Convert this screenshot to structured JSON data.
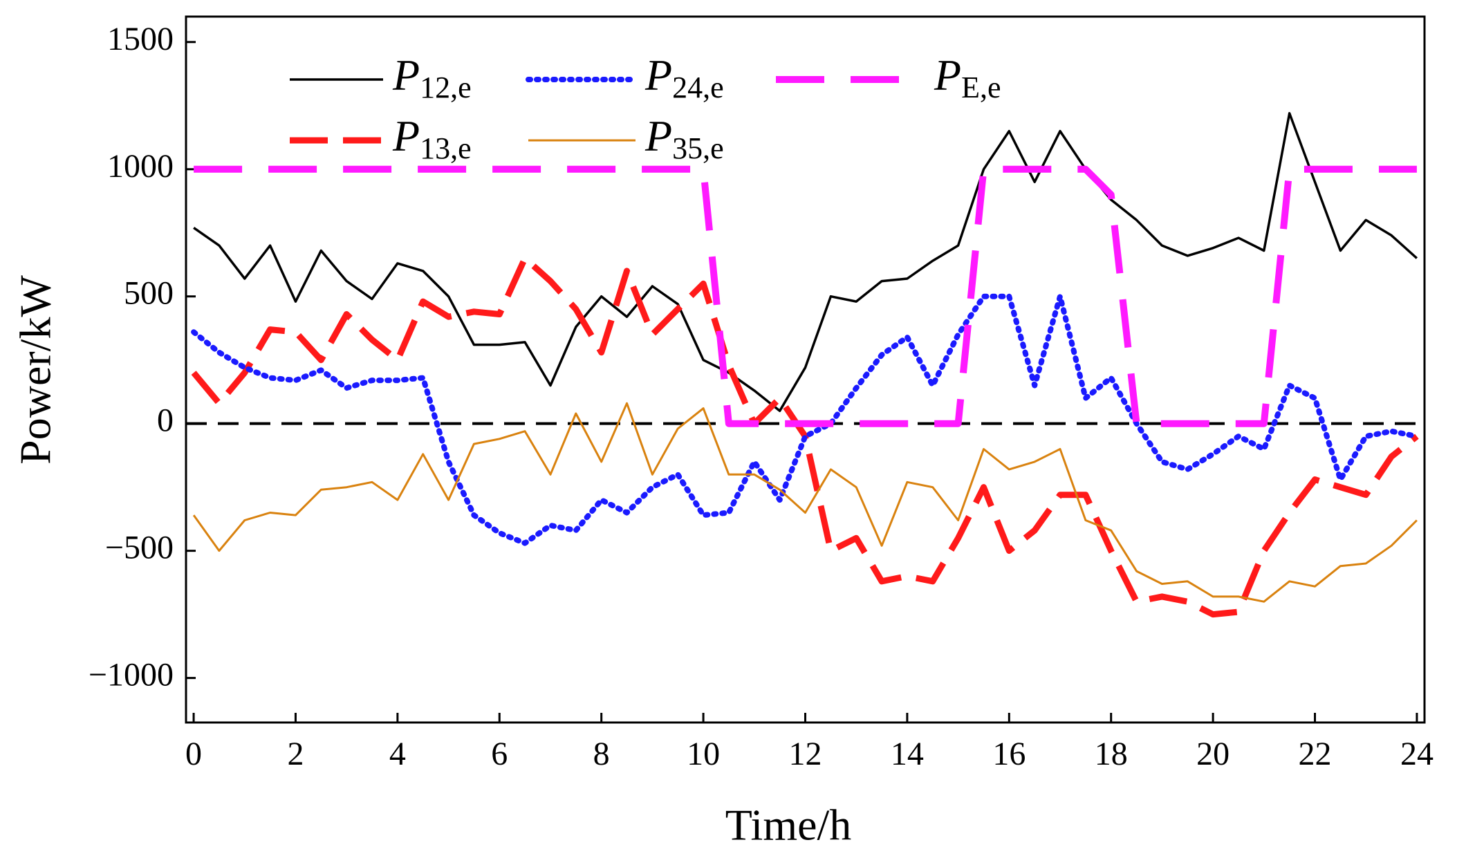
{
  "chart_data": {
    "type": "line",
    "xlabel": "Time/h",
    "ylabel": "Power/kW",
    "x": [
      0,
      0.5,
      1,
      1.5,
      2,
      2.5,
      3,
      3.5,
      4,
      4.5,
      5,
      5.5,
      6,
      6.5,
      7,
      7.5,
      8,
      8.5,
      9,
      9.5,
      10,
      10.5,
      11,
      11.5,
      12,
      12.5,
      13,
      13.5,
      14,
      14.5,
      15,
      15.5,
      16,
      16.5,
      17,
      17.5,
      18,
      18.5,
      19,
      19.5,
      20,
      20.5,
      21,
      21.5,
      22,
      22.5,
      23,
      23.5,
      24
    ],
    "xlim": [
      -0.15,
      24.15
    ],
    "xticks": [
      0,
      2,
      4,
      6,
      8,
      10,
      12,
      14,
      16,
      18,
      20,
      22,
      24
    ],
    "ylim": [
      -1175,
      1600
    ],
    "yticks": [
      {
        "value": -1000,
        "label": "−1000"
      },
      {
        "value": -500,
        "label": "−500"
      },
      0,
      500,
      1000,
      1500
    ],
    "legend": "upper left",
    "series": [
      {
        "name": "P12,e",
        "color": "#000000",
        "linestyle": "solid",
        "values": [
          770,
          700,
          570,
          700,
          480,
          680,
          560,
          490,
          630,
          600,
          500,
          310,
          310,
          320,
          150,
          380,
          500,
          420,
          540,
          470,
          250,
          200,
          130,
          50,
          220,
          500,
          480,
          560,
          570,
          640,
          700,
          1000,
          1150,
          950,
          1150,
          1000,
          880,
          800,
          700,
          660,
          690,
          730,
          680,
          1220,
          950,
          680,
          800,
          740,
          650
        ]
      },
      {
        "name": "P13,e",
        "color": "#ff1a1a",
        "linestyle": "dashed",
        "values": [
          200,
          80,
          200,
          370,
          360,
          250,
          430,
          330,
          250,
          480,
          420,
          440,
          430,
          650,
          560,
          450,
          280,
          600,
          350,
          450,
          550,
          230,
          0,
          100,
          -50,
          -500,
          -450,
          -620,
          -600,
          -620,
          -450,
          -250,
          -500,
          -420,
          -280,
          -280,
          -500,
          -700,
          -680,
          -700,
          -750,
          -740,
          -500,
          -350,
          -220,
          -250,
          -280,
          -130,
          -50
        ]
      },
      {
        "name": "P24,e",
        "color": "#1a1aff",
        "linestyle": "dotted",
        "values": [
          360,
          280,
          220,
          180,
          170,
          210,
          140,
          170,
          170,
          180,
          -150,
          -360,
          -430,
          -470,
          -400,
          -420,
          -300,
          -350,
          -250,
          -200,
          -360,
          -350,
          -150,
          -300,
          -50,
          0,
          140,
          270,
          340,
          150,
          350,
          500,
          500,
          150,
          500,
          100,
          180,
          0,
          -150,
          -180,
          -120,
          -50,
          -100,
          150,
          100,
          -220,
          -50,
          -30,
          -50
        ]
      },
      {
        "name": "P35,e",
        "color": "#d9820f",
        "linestyle": "solid",
        "values": [
          -360,
          -500,
          -380,
          -350,
          -360,
          -260,
          -250,
          -230,
          -300,
          -120,
          -300,
          -80,
          -60,
          -30,
          -200,
          40,
          -150,
          80,
          -200,
          -20,
          60,
          -200,
          -200,
          -260,
          -350,
          -180,
          -250,
          -480,
          -230,
          -250,
          -380,
          -100,
          -180,
          -150,
          -100,
          -380,
          -420,
          -580,
          -630,
          -620,
          -680,
          -680,
          -700,
          -620,
          -640,
          -560,
          -550,
          -480,
          -380
        ]
      },
      {
        "name": "PE,e",
        "color": "#ff1aff",
        "linestyle": "longdash",
        "values": [
          1000,
          1000,
          1000,
          1000,
          1000,
          1000,
          1000,
          1000,
          1000,
          1000,
          1000,
          1000,
          1000,
          1000,
          1000,
          1000,
          1000,
          1000,
          1000,
          1000,
          1000,
          0,
          0,
          0,
          0,
          0,
          0,
          0,
          0,
          0,
          0,
          1000,
          1000,
          1000,
          1000,
          1000,
          900,
          0,
          0,
          0,
          0,
          0,
          0,
          1000,
          1000,
          1000,
          1000,
          1000,
          1000
        ]
      }
    ]
  }
}
